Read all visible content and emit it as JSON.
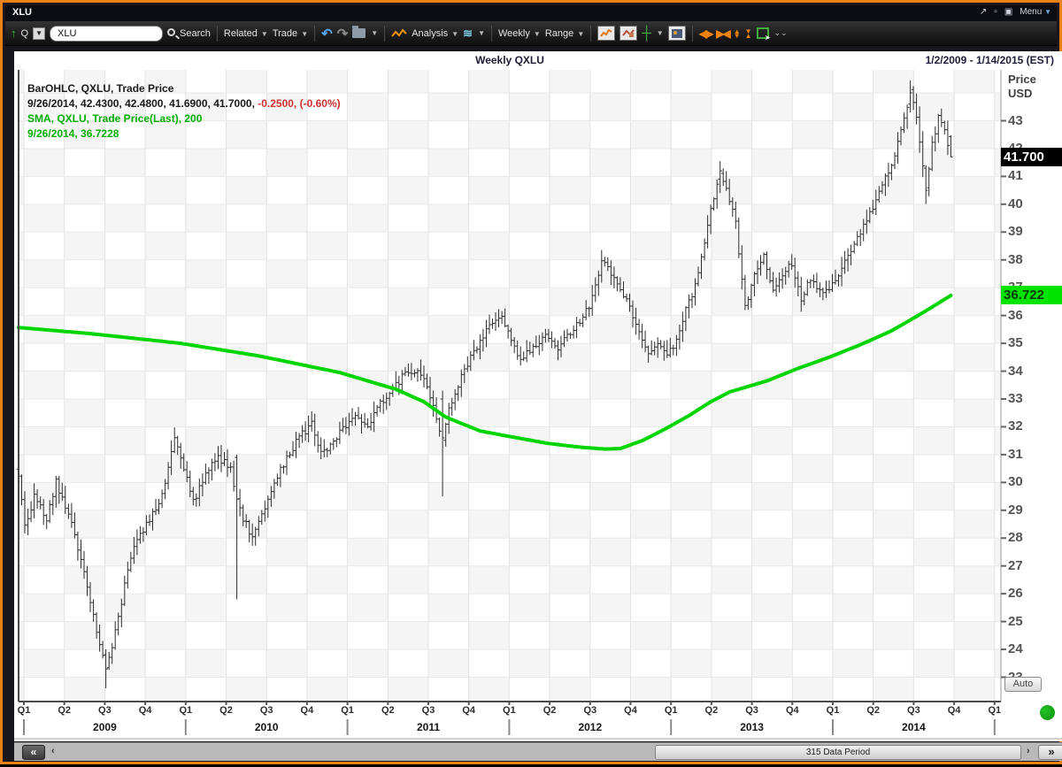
{
  "window": {
    "title": "XLU",
    "menu_label": "Menu"
  },
  "toolbar": {
    "ticker_input": "XLU",
    "search_label": "Search",
    "related_label": "Related",
    "trade_label": "Trade",
    "analysis_label": "Analysis",
    "period_label": "Weekly",
    "range_label": "Range",
    "q_label": "Q"
  },
  "chart_header": {
    "title": "Weekly QXLU",
    "date_range": "1/2/2009 - 1/14/2015 (EST)"
  },
  "legend": {
    "line1": "BarOHLC, QXLU, Trade Price",
    "line2_black": "9/26/2014, 42.4300, 42.4800, 41.6900, 41.7000, ",
    "line2_red": "-0.2500, (-0.60%)",
    "line3": "SMA, QXLU, Trade Price(Last),  200",
    "line4": "9/26/2014, 36.7228"
  },
  "price_axis": {
    "title_line1": "Price",
    "title_line2": "USD",
    "ticks": [
      43,
      42,
      41,
      40,
      39,
      38,
      37,
      36,
      35,
      34,
      33,
      32,
      31,
      30,
      29,
      28,
      27,
      26,
      25,
      24,
      23
    ],
    "last_price_label": "41.700",
    "sma_label": "36.722",
    "auto_label": "Auto"
  },
  "time_axis": {
    "quarter_labels": [
      "Q1",
      "Q2",
      "Q3",
      "Q4",
      "Q1",
      "Q2",
      "Q3",
      "Q4",
      "Q1",
      "Q2",
      "Q3",
      "Q4",
      "Q1",
      "Q2",
      "Q3",
      "Q4",
      "Q1",
      "Q2",
      "Q3",
      "Q4",
      "Q1",
      "Q2",
      "Q3",
      "Q4",
      "Q1"
    ],
    "year_labels": [
      "2009",
      "2010",
      "2011",
      "2012",
      "2013",
      "2014"
    ]
  },
  "scrollbar": {
    "thumb_label": "315 Data Period"
  },
  "colors": {
    "sma_line": "#00d500",
    "bar_stroke": "#2e2e2e",
    "frame_orange": "#ee8210",
    "badge_last_bg": "#000000",
    "badge_sma_bg": "#00e400",
    "legend_red": "#cf3030",
    "legend_green": "#00ad00"
  },
  "chart_data": {
    "type": "ohlc",
    "title": "Weekly QXLU",
    "symbol": "QXLU",
    "period": "Weekly",
    "x_range_label": "1/2/2009 - 1/14/2015 (EST)",
    "ylim": [
      22,
      45
    ],
    "y_ticks": [
      43,
      42,
      41,
      40,
      39,
      38,
      37,
      36,
      35,
      34,
      33,
      32,
      31,
      30,
      29,
      28,
      27,
      26,
      25,
      24,
      23
    ],
    "bars_count": 300,
    "last_bar": {
      "date": "9/26/2014",
      "open": 42.43,
      "high": 42.48,
      "low": 41.69,
      "close": 41.7,
      "change": -0.25,
      "change_pct": -0.6
    },
    "close_path_pivots": [
      [
        0,
        30.2
      ],
      [
        2,
        28.4
      ],
      [
        5,
        29.5
      ],
      [
        9,
        28.7
      ],
      [
        12,
        30.0
      ],
      [
        16,
        28.9
      ],
      [
        20,
        27.2
      ],
      [
        24,
        25.2
      ],
      [
        28,
        23.3
      ],
      [
        31,
        24.6
      ],
      [
        34,
        26.3
      ],
      [
        37,
        27.6
      ],
      [
        40,
        28.3
      ],
      [
        43,
        28.9
      ],
      [
        46,
        29.6
      ],
      [
        48,
        30.6
      ],
      [
        50,
        31.5
      ],
      [
        53,
        30.5
      ],
      [
        56,
        29.3
      ],
      [
        60,
        30.3
      ],
      [
        64,
        30.9
      ],
      [
        68,
        30.5
      ],
      [
        70,
        29.4
      ],
      [
        72,
        28.7
      ],
      [
        75,
        28.0
      ],
      [
        78,
        28.9
      ],
      [
        82,
        30.0
      ],
      [
        86,
        30.9
      ],
      [
        90,
        31.6
      ],
      [
        94,
        32.1
      ],
      [
        97,
        31.0
      ],
      [
        100,
        31.4
      ],
      [
        104,
        31.9
      ],
      [
        108,
        32.3
      ],
      [
        112,
        32.0
      ],
      [
        116,
        32.8
      ],
      [
        120,
        33.4
      ],
      [
        124,
        33.9
      ],
      [
        128,
        34.1
      ],
      [
        131,
        33.5
      ],
      [
        134,
        32.3
      ],
      [
        136,
        31.6
      ],
      [
        138,
        32.7
      ],
      [
        141,
        33.5
      ],
      [
        144,
        34.3
      ],
      [
        148,
        35.1
      ],
      [
        152,
        35.8
      ],
      [
        155,
        36.0
      ],
      [
        158,
        35.0
      ],
      [
        161,
        34.5
      ],
      [
        165,
        34.9
      ],
      [
        169,
        35.2
      ],
      [
        173,
        34.8
      ],
      [
        177,
        35.4
      ],
      [
        181,
        35.9
      ],
      [
        184,
        36.6
      ],
      [
        187,
        38.0
      ],
      [
        190,
        37.5
      ],
      [
        193,
        36.9
      ],
      [
        196,
        36.3
      ],
      [
        199,
        35.5
      ],
      [
        202,
        34.6
      ],
      [
        205,
        35.0
      ],
      [
        208,
        34.5
      ],
      [
        211,
        35.1
      ],
      [
        214,
        36.2
      ],
      [
        217,
        37.1
      ],
      [
        220,
        38.6
      ],
      [
        223,
        40.3
      ],
      [
        225,
        41.2
      ],
      [
        228,
        40.2
      ],
      [
        230,
        39.3
      ],
      [
        233,
        36.3
      ],
      [
        236,
        37.4
      ],
      [
        239,
        38.2
      ],
      [
        242,
        36.8
      ],
      [
        245,
        37.4
      ],
      [
        248,
        37.9
      ],
      [
        251,
        36.6
      ],
      [
        254,
        37.3
      ],
      [
        257,
        36.8
      ],
      [
        261,
        37.1
      ],
      [
        265,
        38.0
      ],
      [
        269,
        38.8
      ],
      [
        273,
        39.7
      ],
      [
        277,
        40.6
      ],
      [
        281,
        41.8
      ],
      [
        284,
        43.2
      ],
      [
        286,
        44.0
      ],
      [
        288,
        43.1
      ],
      [
        290,
        41.4
      ],
      [
        291,
        40.5
      ],
      [
        293,
        42.1
      ],
      [
        295,
        43.2
      ],
      [
        297,
        42.6
      ],
      [
        299,
        41.7
      ]
    ],
    "special_bars": [
      [
        28,
        23.8,
        24.0,
        22.6,
        23.3
      ],
      [
        70,
        30.9,
        31.0,
        25.8,
        29.4
      ],
      [
        136,
        33.0,
        33.3,
        29.5,
        31.6
      ],
      [
        225,
        40.9,
        41.55,
        40.4,
        41.2
      ],
      [
        286,
        43.6,
        44.45,
        43.3,
        44.0
      ],
      [
        291,
        41.3,
        41.4,
        40.0,
        40.5
      ],
      [
        299,
        42.43,
        42.48,
        41.69,
        41.7
      ]
    ],
    "sma": {
      "name": "SMA 200",
      "last_value": 36.7228,
      "anchors": [
        [
          0,
          35.57
        ],
        [
          23,
          35.35
        ],
        [
          52,
          35.0
        ],
        [
          77,
          34.55
        ],
        [
          103,
          33.95
        ],
        [
          121,
          33.35
        ],
        [
          130,
          32.9
        ],
        [
          137,
          32.35
        ],
        [
          148,
          31.85
        ],
        [
          160,
          31.6
        ],
        [
          170,
          31.4
        ],
        [
          180,
          31.27
        ],
        [
          188,
          31.2
        ],
        [
          193,
          31.22
        ],
        [
          200,
          31.5
        ],
        [
          207,
          31.9
        ],
        [
          215,
          32.4
        ],
        [
          222,
          32.9
        ],
        [
          228,
          33.25
        ],
        [
          240,
          33.65
        ],
        [
          250,
          34.1
        ],
        [
          260,
          34.5
        ],
        [
          270,
          34.95
        ],
        [
          280,
          35.45
        ],
        [
          290,
          36.1
        ],
        [
          299,
          36.72
        ]
      ]
    }
  }
}
